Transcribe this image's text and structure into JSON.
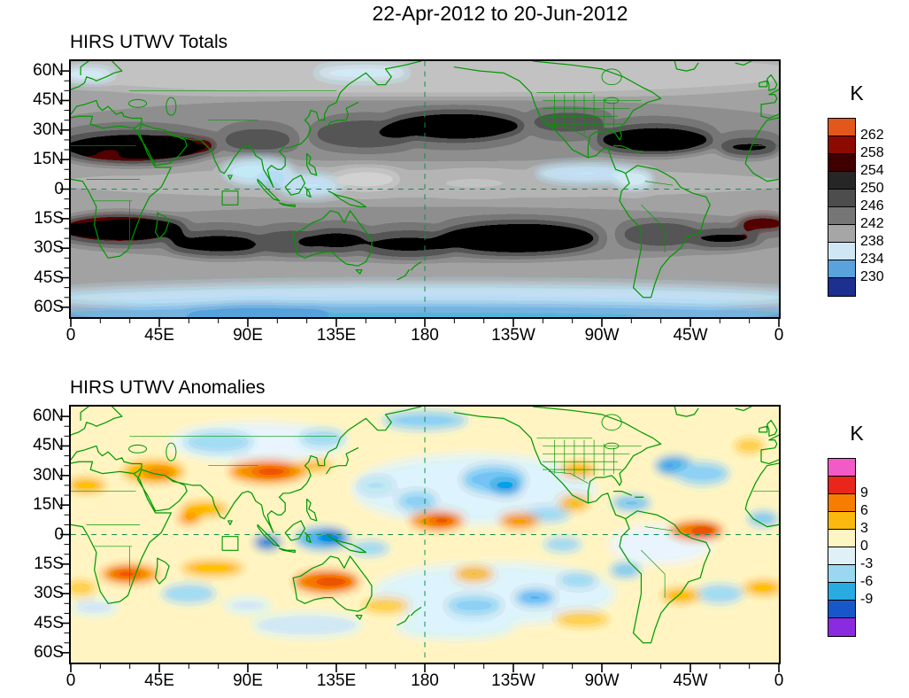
{
  "title": "22-Apr-2012 to 20-Jun-2012",
  "panels": [
    {
      "title": "HIRS UTWV Totals",
      "colorbar": {
        "unit_label": "K",
        "labels": [
          "262",
          "258",
          "254",
          "250",
          "246",
          "242",
          "238",
          "234",
          "230"
        ],
        "colors": [
          "#e2571c",
          "#8c0a00",
          "#400000",
          "#262626",
          "#4d4d4d",
          "#767676",
          "#a6a6a6",
          "#cfe7f2",
          "#5aa2dc",
          "#1d2f8f"
        ]
      }
    },
    {
      "title": "HIRS UTWV Anomalies",
      "colorbar": {
        "unit_label": "K",
        "labels": [
          "9",
          "6",
          "3",
          "0",
          "-3",
          "-6",
          "-9"
        ],
        "colors": [
          "#f25ac8",
          "#e8261c",
          "#f57e00",
          "#fbb80e",
          "#fdf6c3",
          "#dff0f7",
          "#9bd7f0",
          "#29abe2",
          "#1857c9",
          "#8a2be2"
        ]
      }
    }
  ],
  "axes": {
    "lat_labels": [
      "60N",
      "45N",
      "30N",
      "15N",
      "0",
      "15S",
      "30S",
      "45S",
      "60S"
    ],
    "lon_labels": [
      "0",
      "45E",
      "90E",
      "135E",
      "180",
      "135W",
      "90W",
      "45W",
      "0"
    ]
  },
  "map_style": {
    "coastline_color": "#009900",
    "dashed_reference_line_color": "#0f8f4f",
    "totals_base_gray": "#a8a8a8",
    "anomalies_base_yellow": "#fbf3c2"
  },
  "chart_data": [
    {
      "type": "heatmap",
      "subtype": "filled-contour-world-map",
      "title": "HIRS UTWV Totals",
      "date_range": "22-Apr-2012 to 20-Jun-2012",
      "units": "K",
      "projection": "equirectangular, 0E at left edge through 180 to 0 at right edge",
      "x_axis": {
        "tick_labels": [
          "0",
          "45E",
          "90E",
          "135E",
          "180",
          "135W",
          "90W",
          "45W",
          "0"
        ],
        "range_deg_east": [
          0,
          360
        ]
      },
      "y_axis": {
        "tick_labels": [
          "60N",
          "45N",
          "30N",
          "15N",
          "0",
          "15S",
          "30S",
          "45S",
          "60S"
        ],
        "range_deg_lat": [
          -65,
          65
        ]
      },
      "colorbar": {
        "unit": "K",
        "tick_labels": [
          262,
          258,
          254,
          250,
          246,
          242,
          238,
          234,
          230
        ],
        "colors_top_to_bottom": [
          "#e2571c",
          "#8c0a00",
          "#400000",
          "#262626",
          "#4d4d4d",
          "#767676",
          "#a6a6a6",
          "#cfe7f2",
          "#5aa2dc",
          "#1d2f8f"
        ]
      },
      "value_range_K": [
        230,
        262
      ],
      "notable_features": [
        "dark maroon maxima ~258-262 K over North Africa, Arabia and northwest India near 15-25N",
        "dark maroon band ~258-262 K across southern Africa / South Atlantic near 15-25S and east of South America at the right edge",
        "dark gray dry zones ~248-256 K over the central North Pacific 25-35N, North Atlantic ~25N and broad subtropical South Pacific 15-30S",
        "light blue moist minima ~234-238 K over the Bay of Bengal / Southeast Asia, Maritime Continent and east Pacific ITCZ near 5-10N",
        "zonal light blue band ~232-238 K south of about 50S, deepening to blue at the bottom edge",
        "mid grays ~240-248 K over most midlatitude oceans"
      ],
      "overlays": [
        "green coastlines and country/state borders",
        "dashed green equator line",
        "dashed green 180-degree meridian",
        "small green region box near 77-85E on the equator"
      ]
    },
    {
      "type": "heatmap",
      "subtype": "filled-contour-world-map",
      "title": "HIRS UTWV Anomalies",
      "date_range": "22-Apr-2012 to 20-Jun-2012",
      "units": "K",
      "projection": "equirectangular, 0E at left edge through 180 to 0 at right edge",
      "x_axis": {
        "tick_labels": [
          "0",
          "45E",
          "90E",
          "135E",
          "180",
          "135W",
          "90W",
          "45W",
          "0"
        ],
        "range_deg_east": [
          0,
          360
        ]
      },
      "y_axis": {
        "tick_labels": [
          "60N",
          "45N",
          "30N",
          "15N",
          "0",
          "15S",
          "30S",
          "45S",
          "60S"
        ],
        "range_deg_lat": [
          -65,
          65
        ]
      },
      "colorbar": {
        "unit": "K",
        "tick_labels": [
          9,
          6,
          3,
          0,
          -3,
          -6,
          -9
        ],
        "colors_top_to_bottom": [
          "#f25ac8",
          "#e8261c",
          "#f57e00",
          "#fbb80e",
          "#fdf6c3",
          "#dff0f7",
          "#9bd7f0",
          "#29abe2",
          "#1857c9",
          "#8a2be2"
        ]
      },
      "value_range_K": [
        -9,
        9
      ],
      "notable_features": [
        "positive anomalies +3 to +9 K (orange/red) over the Middle East and NE Africa ~25-35N, Tibet/China ~30N, Arabian Sea ~10N, central Pacific ITCZ near 180 and 135W, equatorial northeastern South America / west Atlantic near 30-45W",
        "positive anomaly band +3 to +9 K along 15-25S from southern Africa across the Indian Ocean to central Australia",
        "negative anomalies -3 to -9 K (blue) over the Maritime Continent 0-10S 100-140E, northeast Pacific 20-30N, Caribbean and subtropical North Atlantic, central Asia ~45N, scattered South Pacific",
        "background mostly -2 to +2 K (pale yellow and pale blue)"
      ],
      "overlays": [
        "green coastlines and country/state borders",
        "dashed green equator line",
        "dashed green 180-degree meridian",
        "small green region box near 77-85E on the equator"
      ]
    }
  ]
}
